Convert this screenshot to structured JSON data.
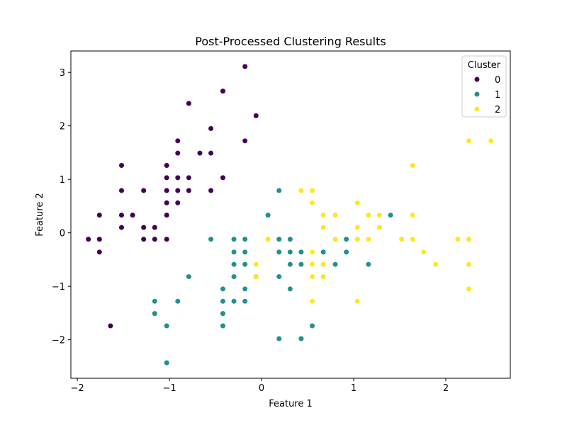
{
  "chart_data": {
    "type": "scatter",
    "title": "Post-Processed Clustering Results",
    "xlabel": "Feature 1",
    "ylabel": "Feature 2",
    "xlim": [
      -2.07,
      2.7
    ],
    "ylim": [
      -2.72,
      3.4
    ],
    "xticks": [
      -2,
      -1,
      0,
      1,
      2
    ],
    "yticks": [
      -2,
      -1,
      0,
      1,
      2,
      3
    ],
    "xtick_labels": [
      "−2",
      "−1",
      "0",
      "1",
      "2"
    ],
    "ytick_labels": [
      "−2",
      "−1",
      "0",
      "1",
      "2",
      "3"
    ],
    "grid": false,
    "legend": {
      "title": "Cluster",
      "placement": "top-right"
    },
    "series": [
      {
        "name": "0",
        "color": "#440154",
        "points": [
          [
            -1.88,
            -0.12
          ],
          [
            -1.76,
            0.33
          ],
          [
            -1.76,
            -0.12
          ],
          [
            -1.76,
            -0.36
          ],
          [
            -1.64,
            -1.74
          ],
          [
            -1.52,
            1.26
          ],
          [
            -1.52,
            0.79
          ],
          [
            -1.52,
            0.33
          ],
          [
            -1.52,
            0.1
          ],
          [
            -1.4,
            0.33
          ],
          [
            -1.28,
            0.79
          ],
          [
            -1.28,
            0.1
          ],
          [
            -1.28,
            -0.12
          ],
          [
            -1.16,
            0.1
          ],
          [
            -1.16,
            -0.12
          ],
          [
            -1.03,
            1.26
          ],
          [
            -1.03,
            1.03
          ],
          [
            -1.03,
            0.79
          ],
          [
            -1.03,
            0.56
          ],
          [
            -1.03,
            0.33
          ],
          [
            -1.03,
            -0.12
          ],
          [
            -0.91,
            1.72
          ],
          [
            -0.91,
            1.49
          ],
          [
            -0.91,
            1.03
          ],
          [
            -0.91,
            0.79
          ],
          [
            -0.91,
            0.56
          ],
          [
            -0.79,
            2.42
          ],
          [
            -0.79,
            1.03
          ],
          [
            -0.79,
            0.79
          ],
          [
            -0.67,
            1.49
          ],
          [
            -0.55,
            1.95
          ],
          [
            -0.55,
            1.49
          ],
          [
            -0.55,
            0.79
          ],
          [
            -0.42,
            2.65
          ],
          [
            -0.42,
            1.03
          ],
          [
            -0.18,
            3.11
          ],
          [
            -0.18,
            1.72
          ],
          [
            -0.06,
            2.19
          ]
        ]
      },
      {
        "name": "1",
        "color": "#21918c",
        "points": [
          [
            -1.16,
            -1.28
          ],
          [
            -1.16,
            -1.51
          ],
          [
            -1.03,
            -1.74
          ],
          [
            -1.03,
            -2.43
          ],
          [
            -0.91,
            -1.28
          ],
          [
            -0.79,
            -0.82
          ],
          [
            -0.55,
            -0.12
          ],
          [
            -0.42,
            -1.05
          ],
          [
            -0.42,
            -1.28
          ],
          [
            -0.42,
            -1.51
          ],
          [
            -0.42,
            -1.74
          ],
          [
            -0.3,
            -0.12
          ],
          [
            -0.3,
            -0.36
          ],
          [
            -0.3,
            -0.59
          ],
          [
            -0.3,
            -0.82
          ],
          [
            -0.3,
            -1.28
          ],
          [
            -0.18,
            -0.12
          ],
          [
            -0.18,
            -0.36
          ],
          [
            -0.18,
            -0.59
          ],
          [
            -0.18,
            -1.05
          ],
          [
            -0.18,
            -1.28
          ],
          [
            -0.06,
            -0.82
          ],
          [
            0.07,
            0.33
          ],
          [
            0.19,
            0.79
          ],
          [
            0.19,
            -0.12
          ],
          [
            0.19,
            -0.36
          ],
          [
            0.19,
            -0.82
          ],
          [
            0.19,
            -1.98
          ],
          [
            0.31,
            -0.12
          ],
          [
            0.31,
            -0.36
          ],
          [
            0.31,
            -0.59
          ],
          [
            0.31,
            -1.05
          ],
          [
            0.43,
            -0.36
          ],
          [
            0.43,
            -0.59
          ],
          [
            0.43,
            -1.98
          ],
          [
            0.55,
            -1.74
          ],
          [
            0.67,
            -0.36
          ],
          [
            0.8,
            -0.59
          ],
          [
            0.92,
            -0.12
          ],
          [
            0.92,
            -0.36
          ],
          [
            1.16,
            -0.59
          ],
          [
            1.4,
            0.33
          ]
        ]
      },
      {
        "name": "2",
        "color": "#fde725",
        "points": [
          [
            -0.06,
            -0.59
          ],
          [
            -0.06,
            -0.82
          ],
          [
            0.07,
            -0.12
          ],
          [
            0.43,
            0.79
          ],
          [
            0.55,
            0.79
          ],
          [
            0.55,
            0.56
          ],
          [
            0.55,
            -0.36
          ],
          [
            0.55,
            -0.59
          ],
          [
            0.55,
            -0.82
          ],
          [
            0.55,
            -1.28
          ],
          [
            0.67,
            0.33
          ],
          [
            0.67,
            0.1
          ],
          [
            0.67,
            -0.59
          ],
          [
            0.67,
            -0.82
          ],
          [
            0.8,
            0.33
          ],
          [
            0.8,
            -0.12
          ],
          [
            1.04,
            0.56
          ],
          [
            1.04,
            0.1
          ],
          [
            1.04,
            -0.12
          ],
          [
            1.04,
            -1.28
          ],
          [
            1.16,
            0.33
          ],
          [
            1.16,
            -0.12
          ],
          [
            1.28,
            0.33
          ],
          [
            1.28,
            0.1
          ],
          [
            1.52,
            -0.12
          ],
          [
            1.64,
            1.26
          ],
          [
            1.64,
            0.33
          ],
          [
            1.64,
            -0.12
          ],
          [
            1.76,
            -0.36
          ],
          [
            1.89,
            -0.59
          ],
          [
            2.13,
            -0.12
          ],
          [
            2.25,
            1.72
          ],
          [
            2.25,
            -0.12
          ],
          [
            2.25,
            -0.59
          ],
          [
            2.25,
            -1.05
          ],
          [
            2.49,
            1.72
          ]
        ]
      }
    ]
  }
}
